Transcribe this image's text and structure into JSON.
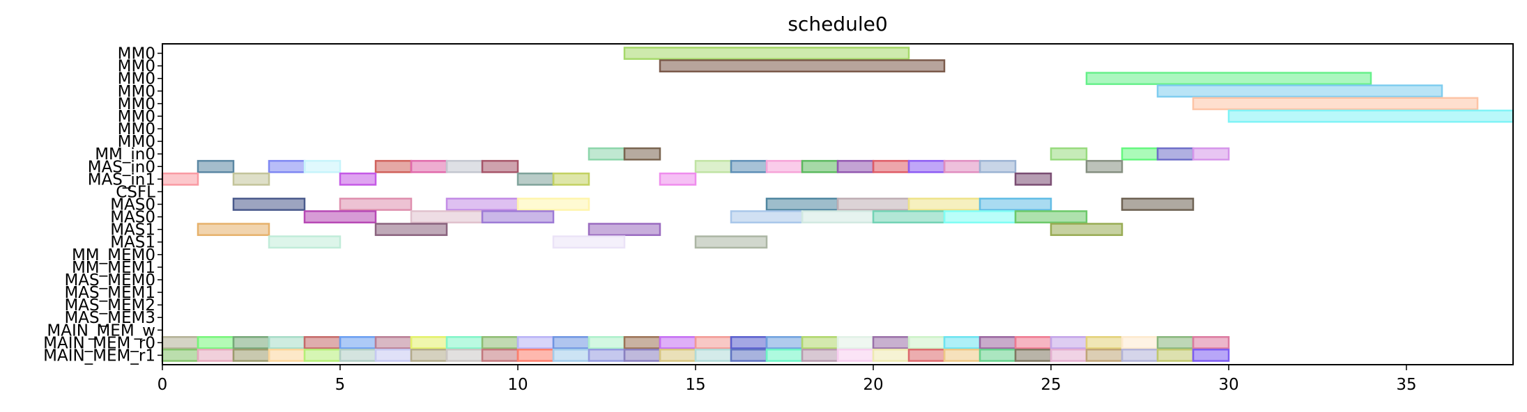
{
  "chart_data": {
    "type": "gantt",
    "title": "schedule0",
    "xlabel": "",
    "ylabel": "",
    "xlim": [
      0,
      38
    ],
    "xticks": [
      0,
      5,
      10,
      15,
      20,
      25,
      30,
      35
    ],
    "grid": false,
    "rows": [
      "MM0",
      "MM0",
      "MM0",
      "MM0",
      "MM0",
      "MM0",
      "MM0",
      "MM0",
      "MM_in0",
      "MAS_in0",
      "MAS_in1",
      "CSFL",
      "MAS0",
      "MAS0",
      "MAS1",
      "MAS1",
      "MM_MEM0",
      "MM_MEM1",
      "MAS_MEM0",
      "MAS_MEM1",
      "MAS_MEM2",
      "MAS_MEM3",
      "MAIN_MEM_w",
      "MAIN_MEM_r0",
      "MAIN_MEM_r1"
    ],
    "tasks": [
      {
        "row": 0,
        "start": 13,
        "end": 21,
        "color": "#a6d96a"
      },
      {
        "row": 1,
        "start": 14,
        "end": 22,
        "color": "#7b5a4b"
      },
      {
        "row": 2,
        "start": 26,
        "end": 34,
        "color": "#66f08a"
      },
      {
        "row": 3,
        "start": 28,
        "end": 36,
        "color": "#7fcdef"
      },
      {
        "row": 4,
        "start": 29,
        "end": 37,
        "color": "#fdc4a6"
      },
      {
        "row": 5,
        "start": 30,
        "end": 38,
        "color": "#7ff3f6"
      },
      {
        "row": 8,
        "start": 12,
        "end": 13,
        "color": "#8dd6ab"
      },
      {
        "row": 8,
        "start": 13,
        "end": 14,
        "color": "#7a6550"
      },
      {
        "row": 8,
        "start": 25,
        "end": 26,
        "color": "#98db7e"
      },
      {
        "row": 8,
        "start": 27,
        "end": 28,
        "color": "#66f780"
      },
      {
        "row": 8,
        "start": 28,
        "end": 29,
        "color": "#6f6fc8"
      },
      {
        "row": 8,
        "start": 29,
        "end": 30,
        "color": "#d696ea"
      },
      {
        "row": 9,
        "start": 1,
        "end": 2,
        "color": "#5a87a3"
      },
      {
        "row": 9,
        "start": 3,
        "end": 4,
        "color": "#7e87f2"
      },
      {
        "row": 9,
        "start": 4,
        "end": 5,
        "color": "#c6f4fb"
      },
      {
        "row": 9,
        "start": 6,
        "end": 7,
        "color": "#d0615b"
      },
      {
        "row": 9,
        "start": 7,
        "end": 8,
        "color": "#e06aab"
      },
      {
        "row": 9,
        "start": 8,
        "end": 9,
        "color": "#c3c6cf"
      },
      {
        "row": 9,
        "start": 9,
        "end": 10,
        "color": "#a65569"
      },
      {
        "row": 9,
        "start": 15,
        "end": 16,
        "color": "#c0e3a3"
      },
      {
        "row": 9,
        "start": 16,
        "end": 17,
        "color": "#5e8fb6"
      },
      {
        "row": 9,
        "start": 17,
        "end": 18,
        "color": "#f6a3d8"
      },
      {
        "row": 9,
        "start": 18,
        "end": 19,
        "color": "#5cb95f"
      },
      {
        "row": 9,
        "start": 19,
        "end": 20,
        "color": "#9258b0"
      },
      {
        "row": 9,
        "start": 20,
        "end": 21,
        "color": "#de5c66"
      },
      {
        "row": 9,
        "start": 21,
        "end": 22,
        "color": "#8d5cf3"
      },
      {
        "row": 9,
        "start": 22,
        "end": 23,
        "color": "#e08dc0"
      },
      {
        "row": 9,
        "start": 23,
        "end": 24,
        "color": "#9bb3d3"
      },
      {
        "row": 9,
        "start": 26,
        "end": 27,
        "color": "#858f80"
      },
      {
        "row": 10,
        "start": 0,
        "end": 1,
        "color": "#f99aa3"
      },
      {
        "row": 10,
        "start": 2,
        "end": 3,
        "color": "#c3c49a"
      },
      {
        "row": 10,
        "start": 5,
        "end": 6,
        "color": "#c55ae6"
      },
      {
        "row": 10,
        "start": 10,
        "end": 11,
        "color": "#7fa29a"
      },
      {
        "row": 10,
        "start": 11,
        "end": 12,
        "color": "#c3d162"
      },
      {
        "row": 10,
        "start": 14,
        "end": 15,
        "color": "#ef8ded"
      },
      {
        "row": 10,
        "start": 24,
        "end": 25,
        "color": "#7a4d72"
      },
      {
        "row": 12,
        "start": 2,
        "end": 4,
        "color": "#4a5a8c"
      },
      {
        "row": 12,
        "start": 5,
        "end": 7,
        "color": "#df8fae"
      },
      {
        "row": 12,
        "start": 8,
        "end": 10,
        "color": "#c38ce6"
      },
      {
        "row": 12,
        "start": 10,
        "end": 12,
        "color": "#fff5ad"
      },
      {
        "row": 12,
        "start": 17,
        "end": 19,
        "color": "#4f86a0"
      },
      {
        "row": 12,
        "start": 19,
        "end": 21,
        "color": "#bfaeb4"
      },
      {
        "row": 12,
        "start": 21,
        "end": 23,
        "color": "#eee38a"
      },
      {
        "row": 12,
        "start": 23,
        "end": 25,
        "color": "#62bde5"
      },
      {
        "row": 12,
        "start": 27,
        "end": 29,
        "color": "#6e6253"
      },
      {
        "row": 13,
        "start": 4,
        "end": 6,
        "color": "#b749b5"
      },
      {
        "row": 13,
        "start": 7,
        "end": 9,
        "color": "#e0c1cd"
      },
      {
        "row": 13,
        "start": 9,
        "end": 11,
        "color": "#9e7bd6"
      },
      {
        "row": 13,
        "start": 16,
        "end": 18,
        "color": "#a9c7ea"
      },
      {
        "row": 13,
        "start": 18,
        "end": 20,
        "color": "#d2e9e1"
      },
      {
        "row": 13,
        "start": 20,
        "end": 22,
        "color": "#73d3b5"
      },
      {
        "row": 13,
        "start": 22,
        "end": 24,
        "color": "#80fdf4"
      },
      {
        "row": 13,
        "start": 24,
        "end": 26,
        "color": "#6cc96a"
      },
      {
        "row": 14,
        "start": 1,
        "end": 3,
        "color": "#e6b16b"
      },
      {
        "row": 14,
        "start": 6,
        "end": 8,
        "color": "#8a637e"
      },
      {
        "row": 14,
        "start": 12,
        "end": 14,
        "color": "#9a6bc0"
      },
      {
        "row": 14,
        "start": 25,
        "end": 27,
        "color": "#98ab53"
      },
      {
        "row": 15,
        "start": 3,
        "end": 5,
        "color": "#c1ecd9"
      },
      {
        "row": 15,
        "start": 11,
        "end": 13,
        "color": "#ebe3f7"
      },
      {
        "row": 15,
        "start": 15,
        "end": 17,
        "color": "#acb6a4"
      },
      {
        "row": 23,
        "start": 0,
        "end": 1,
        "color": "#b3b196"
      },
      {
        "row": 23,
        "start": 1,
        "end": 2,
        "color": "#77f57a"
      },
      {
        "row": 23,
        "start": 2,
        "end": 3,
        "color": "#76a879"
      },
      {
        "row": 23,
        "start": 3,
        "end": 4,
        "color": "#a6dcc7"
      },
      {
        "row": 23,
        "start": 4,
        "end": 5,
        "color": "#c56a69"
      },
      {
        "row": 23,
        "start": 5,
        "end": 6,
        "color": "#6a9ef1"
      },
      {
        "row": 23,
        "start": 6,
        "end": 7,
        "color": "#b97e94"
      },
      {
        "row": 23,
        "start": 7,
        "end": 8,
        "color": "#e3f16a"
      },
      {
        "row": 23,
        "start": 8,
        "end": 9,
        "color": "#81f5c8"
      },
      {
        "row": 23,
        "start": 9,
        "end": 10,
        "color": "#8ebc72"
      },
      {
        "row": 23,
        "start": 10,
        "end": 11,
        "color": "#b8b2f6"
      },
      {
        "row": 23,
        "start": 11,
        "end": 12,
        "color": "#6f95e2"
      },
      {
        "row": 23,
        "start": 12,
        "end": 13,
        "color": "#aef0cb"
      },
      {
        "row": 23,
        "start": 13,
        "end": 14,
        "color": "#9c7356"
      },
      {
        "row": 23,
        "start": 14,
        "end": 15,
        "color": "#c56ef3"
      },
      {
        "row": 23,
        "start": 15,
        "end": 16,
        "color": "#f29a96"
      },
      {
        "row": 23,
        "start": 16,
        "end": 17,
        "color": "#5a5fce"
      },
      {
        "row": 23,
        "start": 17,
        "end": 18,
        "color": "#6fa1de"
      },
      {
        "row": 23,
        "start": 18,
        "end": 19,
        "color": "#b0d76c"
      },
      {
        "row": 23,
        "start": 19,
        "end": 20,
        "color": "#e1f1e6"
      },
      {
        "row": 23,
        "start": 20,
        "end": 21,
        "color": "#9a70a8"
      },
      {
        "row": 23,
        "start": 21,
        "end": 22,
        "color": "#cdf2c8"
      },
      {
        "row": 23,
        "start": 22,
        "end": 23,
        "color": "#6be4f0"
      },
      {
        "row": 23,
        "start": 23,
        "end": 24,
        "color": "#9a66a0"
      },
      {
        "row": 23,
        "start": 24,
        "end": 25,
        "color": "#ef7990"
      },
      {
        "row": 23,
        "start": 25,
        "end": 26,
        "color": "#c3a4e8"
      },
      {
        "row": 23,
        "start": 26,
        "end": 27,
        "color": "#e3d178"
      },
      {
        "row": 23,
        "start": 27,
        "end": 28,
        "color": "#fde9cd"
      },
      {
        "row": 23,
        "start": 28,
        "end": 29,
        "color": "#88b67c"
      },
      {
        "row": 23,
        "start": 29,
        "end": 30,
        "color": "#dc7aa0"
      },
      {
        "row": 24,
        "start": 0,
        "end": 1,
        "color": "#84c36a"
      },
      {
        "row": 24,
        "start": 1,
        "end": 2,
        "color": "#e6a9bd"
      },
      {
        "row": 24,
        "start": 2,
        "end": 3,
        "color": "#9c9c6e"
      },
      {
        "row": 24,
        "start": 3,
        "end": 4,
        "color": "#fcd69a"
      },
      {
        "row": 24,
        "start": 4,
        "end": 5,
        "color": "#b5ef77"
      },
      {
        "row": 24,
        "start": 5,
        "end": 6,
        "color": "#b1cdc4"
      },
      {
        "row": 24,
        "start": 6,
        "end": 7,
        "color": "#c6c9f2"
      },
      {
        "row": 24,
        "start": 7,
        "end": 8,
        "color": "#b3ab8a"
      },
      {
        "row": 24,
        "start": 8,
        "end": 9,
        "color": "#cbc6c4"
      },
      {
        "row": 24,
        "start": 9,
        "end": 10,
        "color": "#c3787d"
      },
      {
        "row": 24,
        "start": 10,
        "end": 11,
        "color": "#fd7e6b"
      },
      {
        "row": 24,
        "start": 11,
        "end": 12,
        "color": "#a3cceb"
      },
      {
        "row": 24,
        "start": 12,
        "end": 13,
        "color": "#959ae0"
      },
      {
        "row": 24,
        "start": 13,
        "end": 14,
        "color": "#8a80c0"
      },
      {
        "row": 24,
        "start": 14,
        "end": 15,
        "color": "#d8c67f"
      },
      {
        "row": 24,
        "start": 15,
        "end": 16,
        "color": "#b1dbd8"
      },
      {
        "row": 24,
        "start": 16,
        "end": 17,
        "color": "#6074c2"
      },
      {
        "row": 24,
        "start": 17,
        "end": 18,
        "color": "#6cf5c5"
      },
      {
        "row": 24,
        "start": 18,
        "end": 19,
        "color": "#b89aae"
      },
      {
        "row": 24,
        "start": 19,
        "end": 20,
        "color": "#f7cdef"
      },
      {
        "row": 24,
        "start": 20,
        "end": 21,
        "color": "#eeeab0"
      },
      {
        "row": 24,
        "start": 21,
        "end": 22,
        "color": "#dd6a6e"
      },
      {
        "row": 24,
        "start": 22,
        "end": 23,
        "color": "#eec885"
      },
      {
        "row": 24,
        "start": 23,
        "end": 24,
        "color": "#66d18c"
      },
      {
        "row": 24,
        "start": 24,
        "end": 25,
        "color": "#807761"
      },
      {
        "row": 24,
        "start": 25,
        "end": 26,
        "color": "#e4aed0"
      },
      {
        "row": 24,
        "start": 26,
        "end": 27,
        "color": "#c0a577"
      },
      {
        "row": 24,
        "start": 27,
        "end": 28,
        "color": "#b2b3d8"
      },
      {
        "row": 24,
        "start": 28,
        "end": 29,
        "color": "#c1c86e"
      },
      {
        "row": 24,
        "start": 29,
        "end": 30,
        "color": "#7d5cf2"
      }
    ]
  }
}
